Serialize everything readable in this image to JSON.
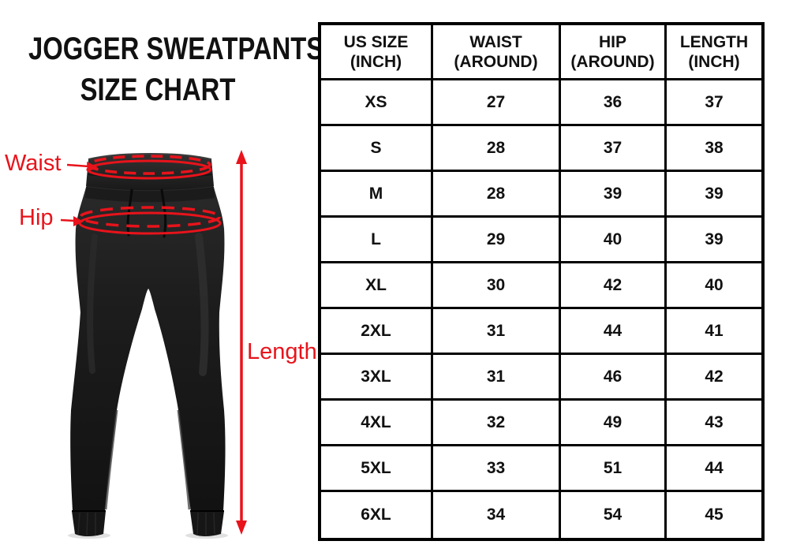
{
  "colors": {
    "accent_red": "#e8131b",
    "table_border": "#000000",
    "pants_black": "#1c1c1c",
    "background": "#ffffff"
  },
  "title": {
    "line1": "JOGGER SWEATPANTS",
    "line2": "SIZE CHART"
  },
  "diagram": {
    "waist_label": "Waist",
    "hip_label": "Hip",
    "length_label": "Length"
  },
  "table": {
    "headers": [
      {
        "line1": "US SIZE",
        "line2": "(INCH)"
      },
      {
        "line1": "WAIST",
        "line2": "(AROUND)"
      },
      {
        "line1": "HIP",
        "line2": "(AROUND)"
      },
      {
        "line1": "LENGTH",
        "line2": "(INCH)"
      }
    ],
    "rows": [
      {
        "size": "XS",
        "waist": "27",
        "hip": "36",
        "length": "37"
      },
      {
        "size": "S",
        "waist": "28",
        "hip": "37",
        "length": "38"
      },
      {
        "size": "M",
        "waist": "28",
        "hip": "39",
        "length": "39"
      },
      {
        "size": "L",
        "waist": "29",
        "hip": "40",
        "length": "39"
      },
      {
        "size": "XL",
        "waist": "30",
        "hip": "42",
        "length": "40"
      },
      {
        "size": "2XL",
        "waist": "31",
        "hip": "44",
        "length": "41"
      },
      {
        "size": "3XL",
        "waist": "31",
        "hip": "46",
        "length": "42"
      },
      {
        "size": "4XL",
        "waist": "32",
        "hip": "49",
        "length": "43"
      },
      {
        "size": "5XL",
        "waist": "33",
        "hip": "51",
        "length": "44"
      },
      {
        "size": "6XL",
        "waist": "34",
        "hip": "54",
        "length": "45"
      }
    ]
  }
}
